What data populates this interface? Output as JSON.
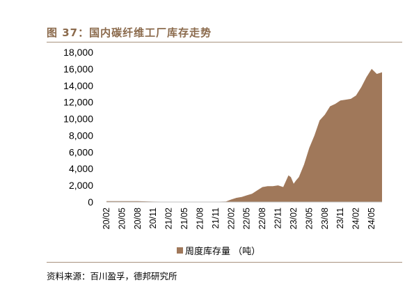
{
  "header": {
    "title": "图 37：国内碳纤维工厂库存走势"
  },
  "footer": {
    "source": "资料来源：百川盈孚，德邦研究所"
  },
  "colors": {
    "area": "#A0785A",
    "accent": "#8B6A4C",
    "rule": "#A8927E"
  },
  "chart_data": {
    "type": "area",
    "title": "",
    "xlabel": "",
    "ylabel": "",
    "ylim": [
      0,
      18000
    ],
    "yticks": [
      "0",
      "2,000",
      "4,000",
      "6,000",
      "8,000",
      "10,000",
      "12,000",
      "14,000",
      "16,000",
      "18,000"
    ],
    "xticks": [
      "20/02",
      "20/05",
      "20/08",
      "20/11",
      "21/02",
      "21/05",
      "21/08",
      "21/11",
      "22/02",
      "22/05",
      "22/08",
      "22/11",
      "23/02",
      "23/05",
      "23/08",
      "23/11",
      "24/02",
      "24/05"
    ],
    "legend_position": "bottom",
    "grid": false,
    "series": [
      {
        "name": "周度库存量 （吨）",
        "points": [
          [
            "2020-02",
            100
          ],
          [
            "2020-05",
            100
          ],
          [
            "2020-08",
            100
          ],
          [
            "2020-11",
            50
          ],
          [
            "2021-02",
            30
          ],
          [
            "2021-05",
            30
          ],
          [
            "2021-08",
            30
          ],
          [
            "2021-11",
            30
          ],
          [
            "2022-01",
            60
          ],
          [
            "2022-02",
            300
          ],
          [
            "2022-03",
            500
          ],
          [
            "2022-04",
            600
          ],
          [
            "2022-05",
            800
          ],
          [
            "2022-06",
            1000
          ],
          [
            "2022-07",
            1400
          ],
          [
            "2022-08",
            1800
          ],
          [
            "2022-09",
            1900
          ],
          [
            "2022-10",
            1900
          ],
          [
            "2022-11",
            2000
          ],
          [
            "2022-12",
            1800
          ],
          [
            "2023-01",
            3200
          ],
          [
            "2023-01-15",
            3000
          ],
          [
            "2023-02",
            2200
          ],
          [
            "2023-02-15",
            2600
          ],
          [
            "2023-03",
            3000
          ],
          [
            "2023-04",
            4500
          ],
          [
            "2023-05",
            6500
          ],
          [
            "2023-06",
            8000
          ],
          [
            "2023-07",
            9800
          ],
          [
            "2023-08",
            10500
          ],
          [
            "2023-09",
            11500
          ],
          [
            "2023-10",
            11800
          ],
          [
            "2023-11",
            12200
          ],
          [
            "2023-12",
            12300
          ],
          [
            "2024-01",
            12400
          ],
          [
            "2024-02",
            12800
          ],
          [
            "2024-03",
            13800
          ],
          [
            "2024-04",
            15000
          ],
          [
            "2024-05",
            16000
          ],
          [
            "2024-06",
            15400
          ],
          [
            "2024-07",
            15600
          ]
        ]
      }
    ]
  }
}
